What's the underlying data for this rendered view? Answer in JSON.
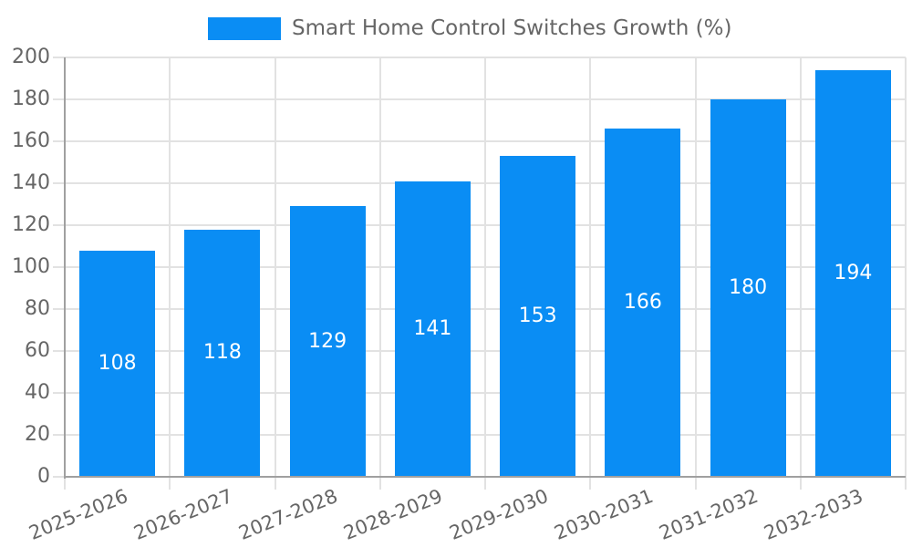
{
  "legend": {
    "label": "Smart Home Control Switches Growth (%)"
  },
  "colors": {
    "bar": "#0a8df4",
    "grid": "#e2e2e2",
    "axis": "#a0a0a0",
    "tick_label": "#666666",
    "legend_text": "#666666",
    "value_label": "#ffffff",
    "background": "#ffffff"
  },
  "chart_data": {
    "type": "bar",
    "title": "Smart Home Control Switches Growth (%)",
    "categories": [
      "2025-2026",
      "2026-2027",
      "2027-2028",
      "2028-2029",
      "2029-2030",
      "2030-2031",
      "2031-2032",
      "2032-2033"
    ],
    "values": [
      108,
      118,
      129,
      141,
      153,
      166,
      180,
      194
    ],
    "xlabel": "",
    "ylabel": "",
    "ylim": [
      0,
      200
    ],
    "ytick_step": 20,
    "yticks": [
      0,
      20,
      40,
      60,
      80,
      100,
      120,
      140,
      160,
      180,
      200
    ],
    "grid": true,
    "legend_position": "top-center",
    "value_label_position": "inside-center",
    "x_tick_rotation_deg": -22
  }
}
